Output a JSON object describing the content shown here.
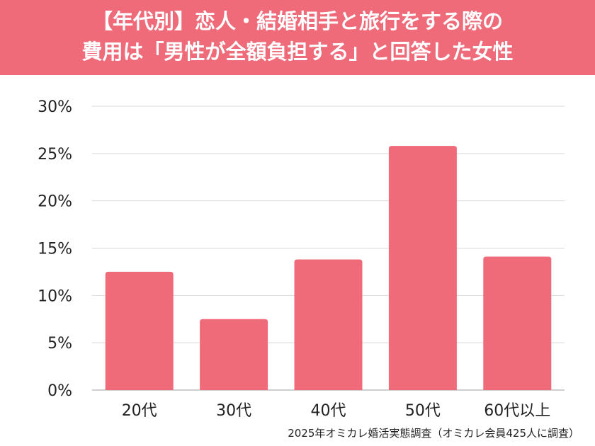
{
  "title_lines": [
    "【年代別】恋人・結婚相手と旅行をする際の",
    "費用は「男性が全額負担する」と回答した女性"
  ],
  "source": "2025年オミカレ婚活実態調査（オミカレ会員425人に調査）",
  "colors": {
    "banner": "#ef6b7a",
    "bar": "#ef6b7a",
    "grid": "#d9d9d9",
    "axis": "#bfbfbf"
  },
  "chart_data": {
    "type": "bar",
    "categories": [
      "20代",
      "30代",
      "40代",
      "50代",
      "60代以上"
    ],
    "values": [
      12.5,
      7.5,
      13.8,
      25.8,
      14.1
    ],
    "ylim": [
      0,
      30
    ],
    "yticks": [
      0,
      5,
      10,
      15,
      20,
      25,
      30
    ],
    "ytick_labels": [
      "0%",
      "5%",
      "10%",
      "15%",
      "20%",
      "25%",
      "30%"
    ],
    "grid": true
  }
}
